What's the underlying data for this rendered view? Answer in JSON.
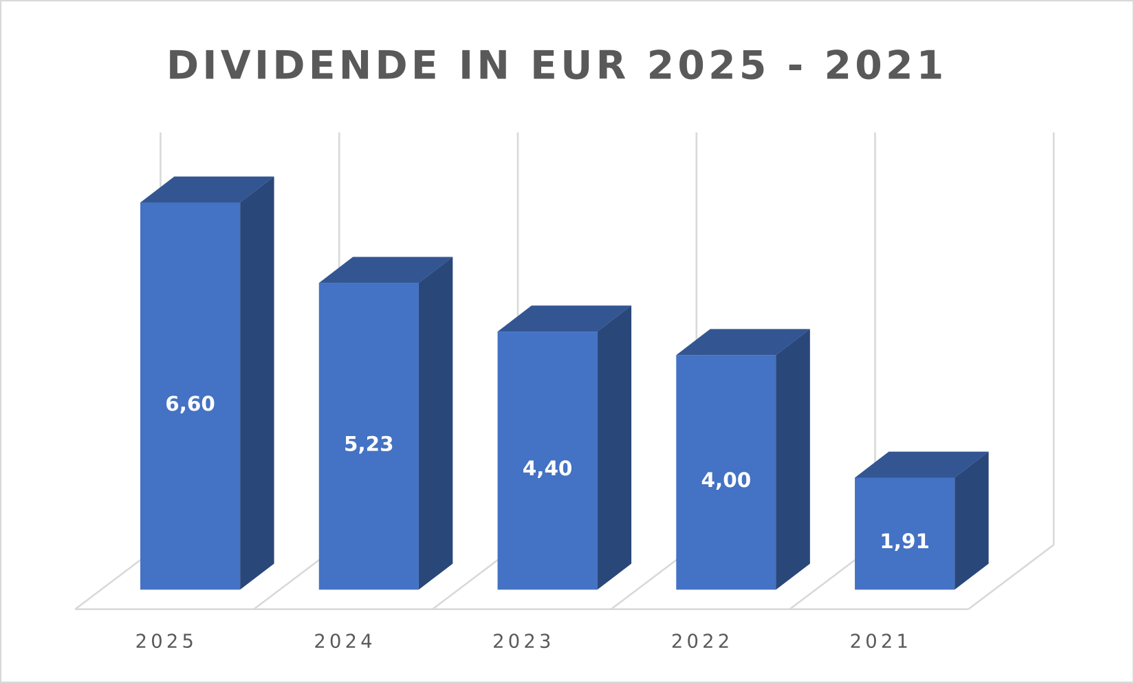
{
  "chart_data": {
    "type": "bar3d",
    "title": "DIVIDENDE IN EUR 2025 - 2021",
    "categories": [
      "2025",
      "2024",
      "2023",
      "2022",
      "2021"
    ],
    "values": [
      6.6,
      5.23,
      4.4,
      4.0,
      1.91
    ],
    "value_labels": [
      "6,60",
      "5,23",
      "4,40",
      "4,00",
      "1,91"
    ],
    "color": "#4472c4",
    "grid": true
  }
}
